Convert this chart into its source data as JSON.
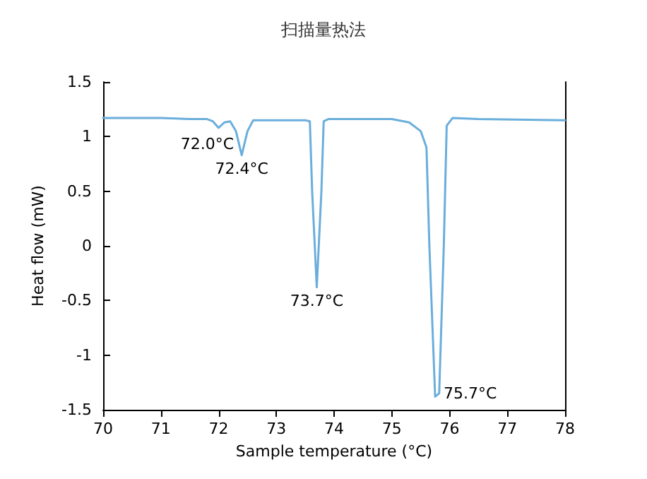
{
  "chart_data": {
    "type": "line",
    "title": "扫描量热法",
    "xlabel": "Sample temperature (°C)",
    "ylabel": "Heat flow (mW)",
    "xlim": [
      70,
      78
    ],
    "xticks": [
      70,
      71,
      72,
      73,
      74,
      75,
      76,
      77,
      78
    ],
    "ylim": [
      -1.5,
      1.5
    ],
    "yticks": [
      -1.5,
      -1,
      -0.5,
      0,
      0.5,
      1,
      1.5
    ],
    "grid": false,
    "marker": "none",
    "line_style": "solid",
    "series": [
      {
        "color": "#6aaedc",
        "x": [
          70,
          71,
          71.5,
          71.8,
          71.9,
          72.0,
          72.1,
          72.2,
          72.3,
          72.4,
          72.5,
          72.6,
          73.5,
          73.58,
          73.62,
          73.7,
          73.78,
          73.82,
          73.9,
          75.0,
          75.3,
          75.5,
          75.6,
          75.65,
          75.75,
          75.82,
          75.9,
          75.95,
          76.05,
          76.5,
          78
        ],
        "values": [
          1.17,
          1.17,
          1.16,
          1.16,
          1.14,
          1.08,
          1.13,
          1.14,
          1.05,
          0.83,
          1.05,
          1.15,
          1.15,
          1.14,
          0.5,
          -0.38,
          0.5,
          1.14,
          1.16,
          1.16,
          1.13,
          1.05,
          0.9,
          0,
          -1.38,
          -1.35,
          0,
          1.1,
          1.17,
          1.16,
          1.15
        ]
      }
    ],
    "annotations": [
      {
        "text": "72.0°C",
        "x": 72.0,
        "y": 1.08
      },
      {
        "text": "72.4°C",
        "x": 72.4,
        "y": 0.83
      },
      {
        "text": "73.7°C",
        "x": 73.7,
        "y": -0.38
      },
      {
        "text": "75.7°C",
        "x": 75.75,
        "y": -1.38
      }
    ]
  }
}
